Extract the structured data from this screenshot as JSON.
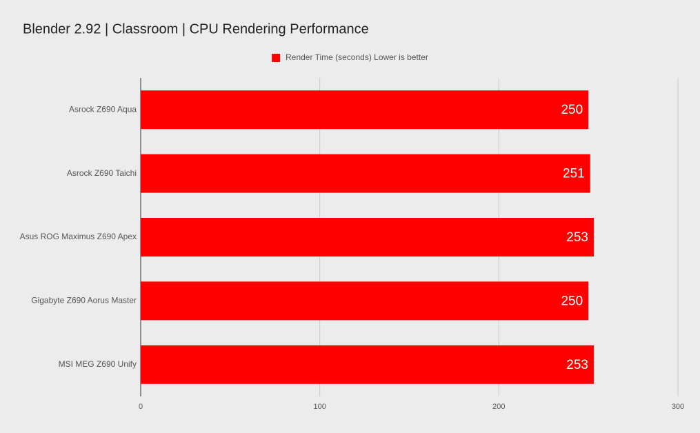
{
  "chart_data": {
    "type": "bar",
    "orientation": "horizontal",
    "title": "Blender 2.92 | Classroom | CPU Rendering Performance",
    "categories": [
      "Asrock Z690 Aqua",
      "Asrock Z690 Taichi",
      "Asus ROG Maximus Z690 Apex",
      "Gigabyte Z690 Aorus Master",
      "MSI MEG Z690 Unify"
    ],
    "series": [
      {
        "name": "Render Time (seconds) Lower is better",
        "color": "#ff0000",
        "values": [
          250,
          251,
          253,
          250,
          253
        ]
      }
    ],
    "xlim": [
      0,
      300
    ],
    "xticks": [
      0,
      100,
      200,
      300
    ],
    "grid": true,
    "legend": "top"
  }
}
